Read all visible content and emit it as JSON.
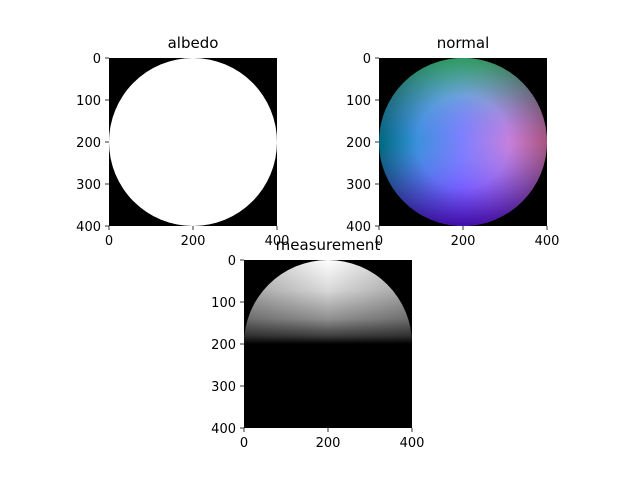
{
  "chart_data": [
    {
      "type": "image",
      "title": "albedo",
      "xlabel": "",
      "ylabel": "",
      "xlim": [
        0,
        400
      ],
      "ylim": [
        400,
        0
      ],
      "xticks": [
        0,
        200,
        400
      ],
      "yticks": [
        0,
        100,
        200,
        300,
        400
      ],
      "content": "white disk on black background",
      "disk": {
        "center": [
          200,
          200
        ],
        "radius": 200
      }
    },
    {
      "type": "image",
      "title": "normal",
      "xlabel": "",
      "ylabel": "",
      "xlim": [
        0,
        400
      ],
      "ylim": [
        400,
        0
      ],
      "xticks": [
        0,
        200,
        400
      ],
      "yticks": [
        0,
        100,
        200,
        300,
        400
      ],
      "content": "sphere surface normals encoded as RGB on black background",
      "disk": {
        "center": [
          200,
          200
        ],
        "radius": 200
      }
    },
    {
      "type": "image",
      "title": "measurement",
      "xlabel": "",
      "ylabel": "",
      "xlim": [
        0,
        400
      ],
      "ylim": [
        400,
        0
      ],
      "xticks": [
        0,
        200,
        400
      ],
      "yticks": [
        0,
        100,
        200,
        300,
        400
      ],
      "content": "grayscale shaded upper hemisphere of disk, lit from top, on black background",
      "disk": {
        "center": [
          200,
          200
        ],
        "radius": 200
      }
    }
  ],
  "colors": {
    "background": "#ffffff",
    "image_background": "#000000",
    "albedo_disk": "#ffffff"
  }
}
